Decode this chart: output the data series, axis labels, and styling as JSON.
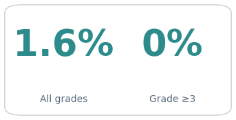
{
  "value1": "1.6%",
  "value2": "0%",
  "label1": "All grades",
  "label2": "Grade ≥3",
  "value_color": "#2e8b8b",
  "label_color": "#5a6a7a",
  "bg_color": "#ffffff",
  "border_color": "#cccccc",
  "value_fontsize": 38,
  "label_fontsize": 10,
  "fig_width": 3.43,
  "fig_height": 1.74,
  "dpi": 100
}
